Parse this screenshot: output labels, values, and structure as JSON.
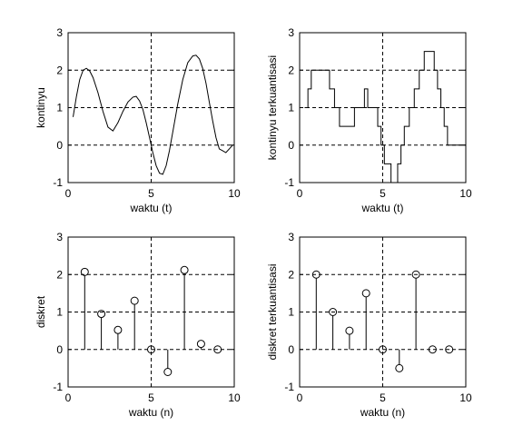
{
  "colors": {
    "background": "#ffffff",
    "axes": "#000000",
    "line": "#000000",
    "grid": "#000000"
  },
  "chart_data": [
    {
      "id": "kontinyu",
      "type": "line",
      "xlabel": "waktu (t)",
      "ylabel": "kontinyu",
      "xlim": [
        0,
        10
      ],
      "ylim": [
        -1,
        3
      ],
      "xticks": [
        "0",
        "5",
        "10"
      ],
      "yticks": [
        "-1",
        "0",
        "1",
        "2",
        "3"
      ],
      "grid": "dashed at x=5 and y=0,1,2",
      "x": [
        0.3,
        0.5,
        0.7,
        0.9,
        1.1,
        1.3,
        1.5,
        1.8,
        2.1,
        2.4,
        2.7,
        3.0,
        3.3,
        3.6,
        3.9,
        4.1,
        4.3,
        4.5,
        4.7,
        4.9,
        5.1,
        5.3,
        5.5,
        5.7,
        5.9,
        6.1,
        6.3,
        6.6,
        6.9,
        7.2,
        7.5,
        7.7,
        7.9,
        8.1,
        8.3,
        8.5,
        8.7,
        8.9,
        9.1,
        9.3,
        9.5,
        9.7,
        9.9
      ],
      "y": [
        0.75,
        1.3,
        1.75,
        2.0,
        2.05,
        1.98,
        1.8,
        1.4,
        0.9,
        0.48,
        0.38,
        0.6,
        0.9,
        1.15,
        1.28,
        1.3,
        1.18,
        0.95,
        0.6,
        0.2,
        -0.2,
        -0.55,
        -0.75,
        -0.78,
        -0.55,
        -0.15,
        0.35,
        1.1,
        1.75,
        2.2,
        2.38,
        2.4,
        2.3,
        2.05,
        1.65,
        1.15,
        0.65,
        0.2,
        -0.1,
        -0.15,
        -0.2,
        -0.1,
        0.0
      ]
    },
    {
      "id": "kontinyu-terkuantisasi",
      "type": "line",
      "step": true,
      "xlabel": "waktu (t)",
      "ylabel": "kontinyu terkuantisasi",
      "xlim": [
        0,
        10
      ],
      "ylim": [
        -1,
        3
      ],
      "xticks": [
        "0",
        "5",
        "10"
      ],
      "yticks": [
        "-1",
        "0",
        "1",
        "2",
        "3"
      ],
      "grid": "dashed at x=5 and y=0,1,2",
      "x": [
        0.3,
        0.5,
        0.7,
        0.9,
        1.1,
        1.3,
        1.5,
        1.8,
        2.1,
        2.4,
        2.7,
        3.0,
        3.3,
        3.6,
        3.9,
        4.1,
        4.3,
        4.5,
        4.7,
        4.9,
        5.1,
        5.3,
        5.5,
        5.7,
        5.9,
        6.1,
        6.3,
        6.6,
        6.9,
        7.2,
        7.5,
        7.7,
        7.9,
        8.1,
        8.3,
        8.5,
        8.7,
        8.9,
        9.1,
        9.3,
        9.5,
        9.7,
        9.9,
        10.0
      ],
      "y": [
        1.0,
        1.5,
        2.0,
        2.0,
        2.0,
        2.0,
        2.0,
        1.5,
        1.0,
        0.5,
        0.5,
        0.5,
        1.0,
        1.0,
        1.5,
        1.0,
        1.0,
        1.0,
        0.5,
        0.0,
        -0.5,
        -0.5,
        -1.0,
        -1.0,
        -0.5,
        0.0,
        0.5,
        1.0,
        1.5,
        2.0,
        2.5,
        2.5,
        2.5,
        2.0,
        1.5,
        1.0,
        0.5,
        0.0,
        0.0,
        0.0,
        0.0,
        0.0,
        0.0,
        0.0
      ]
    },
    {
      "id": "diskret",
      "type": "stem",
      "xlabel": "waktu (n)",
      "ylabel": "diskret",
      "xlim": [
        0,
        10
      ],
      "ylim": [
        -1,
        3
      ],
      "xticks": [
        "0",
        "5",
        "10"
      ],
      "yticks": [
        "-1",
        "0",
        "1",
        "2",
        "3"
      ],
      "grid": "dashed at x=5 and y=0,1,2",
      "x": [
        1,
        2,
        3,
        4,
        5,
        6,
        7,
        8,
        9
      ],
      "y": [
        2.07,
        0.95,
        0.52,
        1.3,
        0.0,
        -0.6,
        2.12,
        0.15,
        0.0
      ]
    },
    {
      "id": "diskret-terkuantisasi",
      "type": "stem",
      "xlabel": "waktu (n)",
      "ylabel": "diskret terkuantisasi",
      "xlim": [
        0,
        10
      ],
      "ylim": [
        -1,
        3
      ],
      "xticks": [
        "0",
        "5",
        "10"
      ],
      "yticks": [
        "-1",
        "0",
        "1",
        "2",
        "3"
      ],
      "grid": "dashed at x=5 and y=0,1,2",
      "x": [
        1,
        2,
        3,
        4,
        5,
        6,
        7,
        8,
        9
      ],
      "y": [
        2.0,
        1.0,
        0.5,
        1.5,
        0.0,
        -0.5,
        2.0,
        0.0,
        0.0
      ]
    }
  ]
}
